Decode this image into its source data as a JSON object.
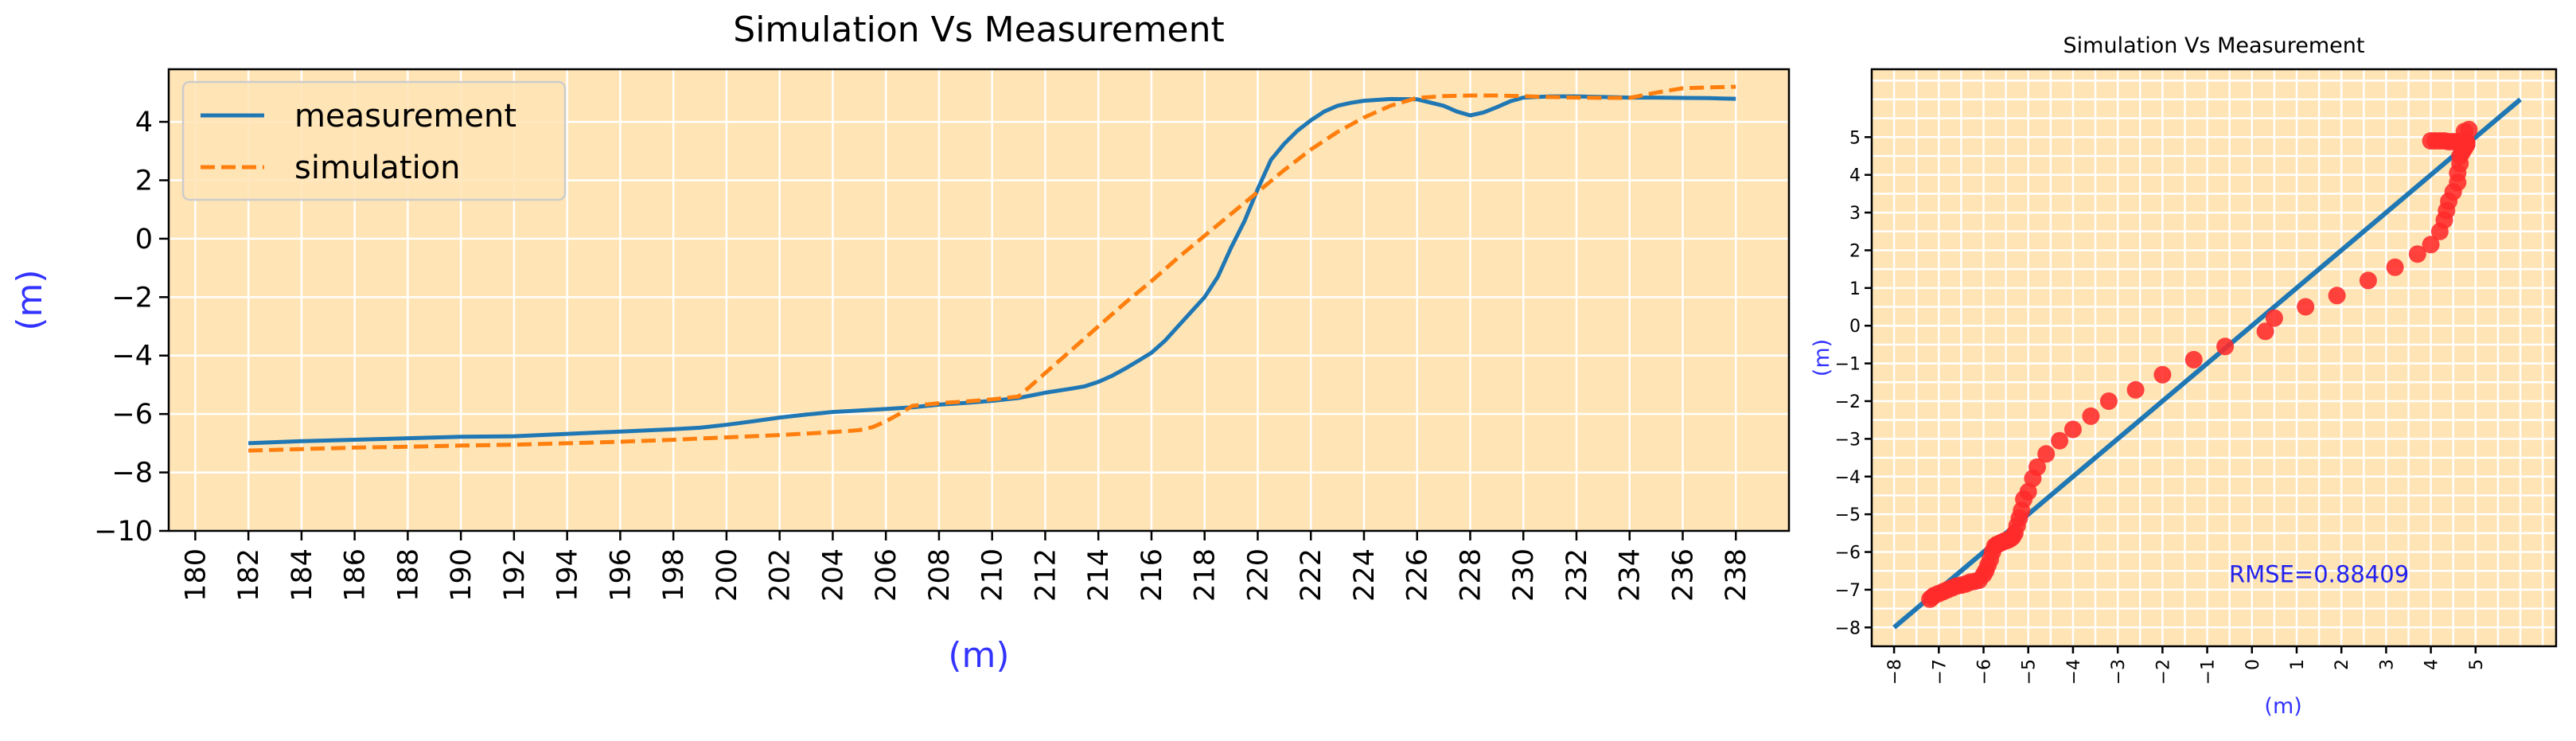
{
  "chart_data": [
    {
      "type": "line",
      "title": "Simulation Vs Measurement",
      "xlabel": "(m)",
      "ylabel": "(m)",
      "xlim": [
        179,
        240
      ],
      "ylim": [
        -10,
        5.8
      ],
      "xticks": [
        180,
        182,
        184,
        186,
        188,
        190,
        192,
        194,
        196,
        198,
        200,
        202,
        204,
        206,
        208,
        210,
        212,
        214,
        216,
        218,
        220,
        222,
        224,
        226,
        228,
        230,
        232,
        234,
        236,
        238
      ],
      "yticks": [
        -10,
        -8,
        -6,
        -4,
        -2,
        0,
        2,
        4
      ],
      "xtick_labels": [
        "180",
        "182",
        "184",
        "186",
        "188",
        "190",
        "192",
        "194",
        "196",
        "198",
        "200",
        "202",
        "204",
        "206",
        "208",
        "210",
        "212",
        "214",
        "216",
        "218",
        "220",
        "222",
        "224",
        "226",
        "228",
        "230",
        "232",
        "234",
        "236",
        "238"
      ],
      "ytick_labels": [
        "−10",
        "−8",
        "−6",
        "−4",
        "−2",
        "0",
        "2",
        "4"
      ],
      "grid": true,
      "background": "#ffe4b5",
      "legend_position": "top-left",
      "series": [
        {
          "name": "measurement",
          "color": "#1f77b4",
          "style": "solid",
          "x": [
            182,
            184,
            186,
            188,
            190,
            192,
            194,
            196,
            198,
            199,
            200,
            201,
            202,
            203,
            204,
            205,
            206,
            207,
            208,
            209,
            210,
            211,
            212,
            213,
            213.5,
            214,
            214.5,
            215,
            215.5,
            216,
            216.5,
            217,
            217.5,
            218,
            218.5,
            219,
            219.5,
            220,
            220.5,
            221,
            221.5,
            222,
            222.5,
            223,
            223.5,
            224,
            225,
            226,
            227,
            227.5,
            228,
            228.5,
            229,
            229.5,
            230,
            231,
            232,
            233,
            234,
            235,
            236,
            237,
            238
          ],
          "y": [
            -7.0,
            -6.93,
            -6.88,
            -6.83,
            -6.78,
            -6.76,
            -6.68,
            -6.6,
            -6.52,
            -6.47,
            -6.37,
            -6.25,
            -6.12,
            -6.02,
            -5.93,
            -5.88,
            -5.83,
            -5.77,
            -5.68,
            -5.62,
            -5.55,
            -5.45,
            -5.27,
            -5.13,
            -5.05,
            -4.9,
            -4.7,
            -4.45,
            -4.18,
            -3.9,
            -3.5,
            -3.0,
            -2.5,
            -2.0,
            -1.3,
            -0.3,
            0.6,
            1.7,
            2.7,
            3.25,
            3.7,
            4.05,
            4.35,
            4.55,
            4.65,
            4.72,
            4.78,
            4.77,
            4.55,
            4.35,
            4.22,
            4.32,
            4.5,
            4.7,
            4.83,
            4.87,
            4.87,
            4.85,
            4.83,
            4.83,
            4.82,
            4.81,
            4.79
          ]
        },
        {
          "name": "simulation",
          "color": "#ff7f0e",
          "style": "dashed",
          "x": [
            182,
            184,
            186,
            188,
            190,
            192,
            194,
            196,
            198,
            200,
            202,
            204,
            205,
            205.5,
            206,
            206.5,
            207,
            208,
            209,
            210,
            211,
            212,
            213,
            214,
            215,
            216,
            217,
            218,
            219,
            220,
            221,
            222,
            223,
            224,
            225,
            226,
            227,
            228,
            229,
            230,
            231,
            232,
            233,
            234,
            235,
            236,
            237,
            238
          ],
          "y": [
            -7.25,
            -7.2,
            -7.15,
            -7.12,
            -7.08,
            -7.05,
            -7.0,
            -6.95,
            -6.88,
            -6.8,
            -6.72,
            -6.62,
            -6.55,
            -6.45,
            -6.25,
            -6.0,
            -5.72,
            -5.63,
            -5.57,
            -5.5,
            -5.4,
            -4.6,
            -3.8,
            -3.0,
            -2.2,
            -1.45,
            -0.65,
            0.1,
            0.85,
            1.6,
            2.35,
            3.05,
            3.65,
            4.15,
            4.55,
            4.82,
            4.88,
            4.9,
            4.9,
            4.88,
            4.85,
            4.83,
            4.82,
            4.82,
            5.0,
            5.15,
            5.18,
            5.2
          ]
        }
      ]
    },
    {
      "type": "scatter",
      "title": "Simulation Vs Measurement",
      "xlabel": "(m)",
      "ylabel": "(m)",
      "xlim": [
        -8.5,
        6.8
      ],
      "ylim": [
        -8.5,
        6.8
      ],
      "xticks": [
        -8,
        -7,
        -6,
        -5,
        -4,
        -3,
        -2,
        -1,
        0,
        1,
        2,
        3,
        4,
        5
      ],
      "yticks": [
        -8,
        -7,
        -6,
        -5,
        -4,
        -3,
        -2,
        -1,
        0,
        1,
        2,
        3,
        4,
        5
      ],
      "xtick_labels": [
        "−8",
        "−7",
        "−6",
        "−5",
        "−4",
        "−3",
        "−2",
        "−1",
        "0",
        "1",
        "2",
        "3",
        "4",
        "5"
      ],
      "ytick_labels": [
        "−8",
        "−7",
        "−6",
        "−5",
        "−4",
        "−3",
        "−2",
        "−1",
        "0",
        "1",
        "2",
        "3",
        "4",
        "5"
      ],
      "grid": true,
      "background": "#ffe4b5",
      "annotation": "RMSE=0.88409",
      "reference_line": {
        "x": [
          -8,
          6
        ],
        "y": [
          -8,
          6
        ],
        "color": "#1f77b4"
      },
      "series": [
        {
          "color": "#ff2a2a",
          "x": [
            -7.2,
            -7.15,
            -7.1,
            -7.0,
            -6.9,
            -6.8,
            -6.7,
            -6.6,
            -6.5,
            -6.4,
            -6.3,
            -6.2,
            -6.1,
            -6.0,
            -5.95,
            -5.9,
            -5.85,
            -5.8,
            -5.75,
            -5.7,
            -5.65,
            -5.6,
            -5.55,
            -5.5,
            -5.45,
            -5.4,
            -5.35,
            -5.3,
            -5.25,
            -5.2,
            -5.15,
            -5.1,
            -5.0,
            -4.9,
            -4.8,
            -4.6,
            -4.3,
            -4.0,
            -3.6,
            -3.2,
            -2.6,
            -2.0,
            -1.3,
            -0.6,
            0.3,
            0.5,
            1.2,
            1.9,
            2.6,
            3.2,
            3.7,
            4.0,
            4.2,
            4.3,
            4.35,
            4.4,
            4.5,
            4.6,
            4.6,
            4.65,
            4.65,
            4.7,
            4.7,
            4.75,
            4.75,
            4.8,
            4.8,
            4.8,
            4.8,
            4.75,
            4.7,
            4.6,
            4.5,
            4.4,
            4.3,
            4.2,
            4.1,
            4.0,
            4.75,
            4.85
          ],
          "y": [
            -7.25,
            -7.2,
            -7.15,
            -7.1,
            -7.05,
            -7.0,
            -6.95,
            -6.9,
            -6.88,
            -6.85,
            -6.8,
            -6.78,
            -6.75,
            -6.6,
            -6.5,
            -6.35,
            -6.2,
            -6.0,
            -5.85,
            -5.8,
            -5.78,
            -5.75,
            -5.72,
            -5.7,
            -5.68,
            -5.65,
            -5.6,
            -5.5,
            -5.3,
            -5.1,
            -4.9,
            -4.6,
            -4.4,
            -4.05,
            -3.75,
            -3.4,
            -3.05,
            -2.75,
            -2.4,
            -2.0,
            -1.7,
            -1.3,
            -0.9,
            -0.55,
            -0.15,
            0.2,
            0.5,
            0.8,
            1.2,
            1.55,
            1.9,
            2.15,
            2.5,
            2.8,
            3.05,
            3.3,
            3.55,
            3.8,
            4.05,
            4.3,
            4.5,
            4.6,
            4.65,
            4.7,
            4.75,
            4.8,
            4.82,
            4.85,
            4.87,
            4.88,
            4.88,
            4.88,
            4.88,
            4.88,
            4.9,
            4.9,
            4.9,
            4.9,
            5.15,
            5.2
          ]
        }
      ]
    }
  ]
}
